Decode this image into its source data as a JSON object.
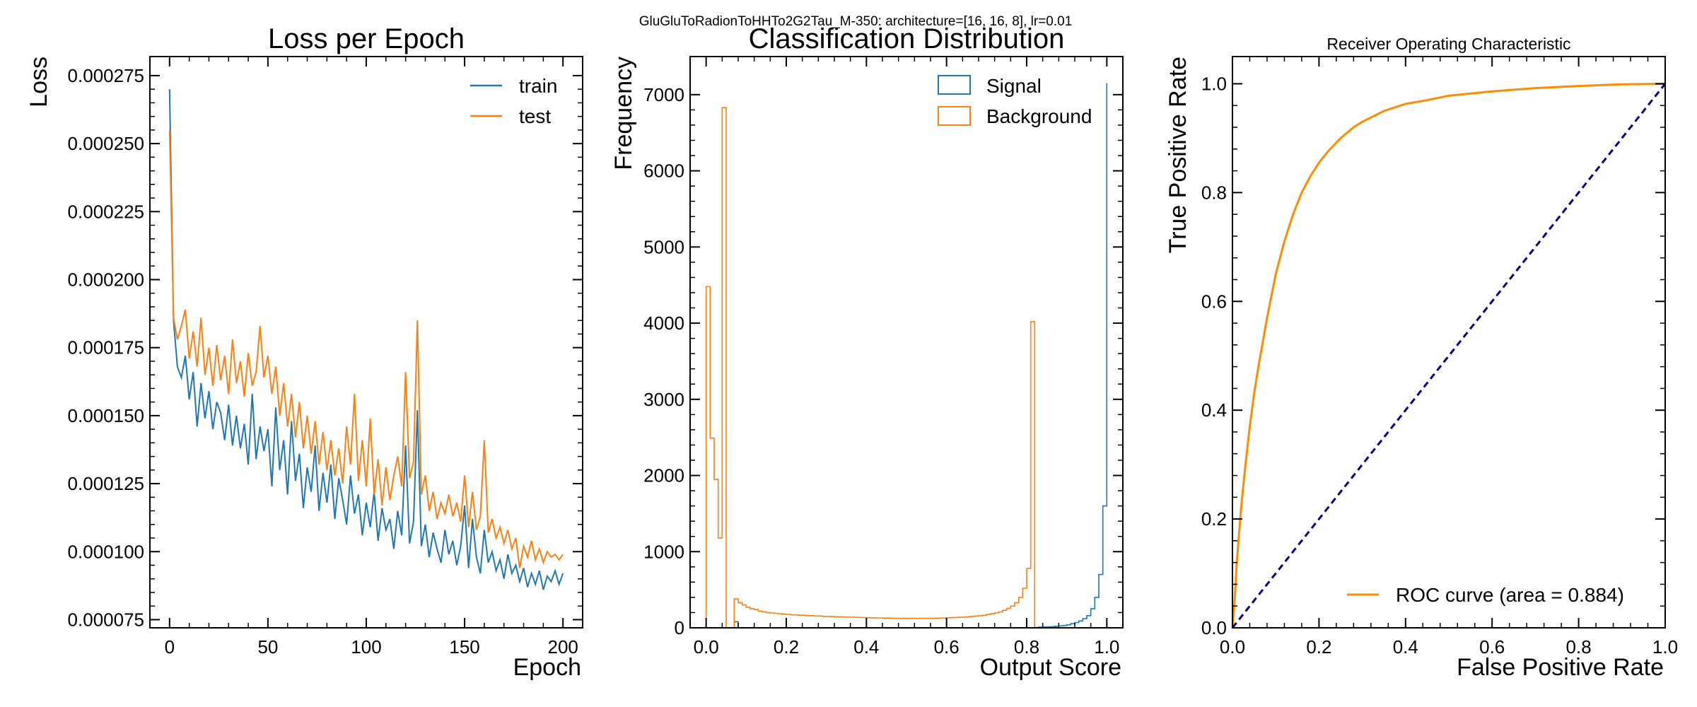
{
  "figure": {
    "suptitle": "GluGluToRadionToHHTo2G2Tau_M-350: architecture=[16, 16, 8], lr=0.01"
  },
  "colors": {
    "blue": "#1f77b4",
    "orange": "#ff7f0e",
    "roc_orange": "#ff8c00",
    "diag": "#000080"
  },
  "chart_data": [
    {
      "type": "line",
      "title": "Loss per Epoch",
      "xlabel": "Epoch",
      "ylabel": "Loss",
      "xlim": [
        -10,
        210
      ],
      "ylim": [
        7.2e-05,
        0.000282
      ],
      "xticks": [
        0,
        50,
        100,
        150,
        200
      ],
      "xtick_labels": [
        "0",
        "50",
        "100",
        "150",
        "200"
      ],
      "yticks": [
        7.5e-05,
        0.0001,
        0.000125,
        0.00015,
        0.000175,
        0.0002,
        0.000225,
        0.00025,
        0.000275
      ],
      "ytick_labels": [
        "0.000075",
        "0.000100",
        "0.000125",
        "0.000150",
        "0.000175",
        "0.000200",
        "0.000225",
        "0.000250",
        "0.000275"
      ],
      "legend": "top-right",
      "series": [
        {
          "name": "train",
          "color": "#1f77b4",
          "x": [
            0,
            2,
            4,
            6,
            8,
            10,
            12,
            14,
            16,
            18,
            20,
            22,
            24,
            26,
            28,
            30,
            32,
            34,
            36,
            38,
            40,
            42,
            44,
            46,
            48,
            50,
            52,
            54,
            56,
            58,
            60,
            62,
            64,
            66,
            68,
            70,
            72,
            74,
            76,
            78,
            80,
            82,
            84,
            86,
            88,
            90,
            92,
            94,
            96,
            98,
            100,
            102,
            104,
            106,
            108,
            110,
            112,
            114,
            116,
            118,
            120,
            122,
            124,
            126,
            128,
            130,
            132,
            134,
            136,
            138,
            140,
            142,
            144,
            146,
            148,
            150,
            152,
            154,
            156,
            158,
            160,
            162,
            164,
            166,
            168,
            170,
            172,
            174,
            176,
            178,
            180,
            182,
            184,
            186,
            188,
            190,
            192,
            194,
            196,
            198,
            200
          ],
          "y": [
            0.00027,
            0.000185,
            0.000168,
            0.000164,
            0.000172,
            0.000156,
            0.000166,
            0.000146,
            0.000162,
            0.000149,
            0.000159,
            0.000145,
            0.000155,
            0.000151,
            0.000141,
            0.000154,
            0.000139,
            0.00015,
            0.000138,
            0.000147,
            0.000132,
            0.000158,
            0.000134,
            0.000146,
            0.000137,
            0.000145,
            0.000124,
            0.000153,
            0.00013,
            0.000141,
            0.000121,
            0.000148,
            0.000126,
            0.000136,
            0.000116,
            0.000131,
            0.000122,
            0.000139,
            0.000115,
            0.000129,
            0.000118,
            0.000132,
            0.000112,
            0.000127,
            0.000119,
            0.00011,
            0.000128,
            0.000114,
            0.000121,
            0.000106,
            0.000118,
            0.000109,
            0.000122,
            0.000104,
            0.000116,
            0.000108,
            0.000112,
            0.000101,
            0.000115,
            0.000106,
            0.000139,
            0.000103,
            0.000111,
            0.000152,
            0.000102,
            0.00011,
            9.8e-05,
            0.000107,
            0.000101,
            9.6e-05,
            0.000108,
            9.9e-05,
            0.000104,
            9.5e-05,
            0.000102,
            0.000117,
            9.4e-05,
            0.000112,
            9.8e-05,
            9.2e-05,
            0.000108,
            9.6e-05,
            0.0001,
            9.3e-05,
            9.7e-05,
            9e-05,
            9.9e-05,
            9.2e-05,
            9.5e-05,
            8.9e-05,
            9.4e-05,
            8.7e-05,
            9.2e-05,
            8.8e-05,
            9.3e-05,
            8.6e-05,
            9.1e-05,
            8.9e-05,
            9.3e-05,
            8.8e-05,
            9.2e-05
          ]
        },
        {
          "name": "test",
          "color": "#ff7f0e",
          "x": [
            0,
            2,
            4,
            6,
            8,
            10,
            12,
            14,
            16,
            18,
            20,
            22,
            24,
            26,
            28,
            30,
            32,
            34,
            36,
            38,
            40,
            42,
            44,
            46,
            48,
            50,
            52,
            54,
            56,
            58,
            60,
            62,
            64,
            66,
            68,
            70,
            72,
            74,
            76,
            78,
            80,
            82,
            84,
            86,
            88,
            90,
            92,
            94,
            96,
            98,
            100,
            102,
            104,
            106,
            108,
            110,
            112,
            114,
            116,
            118,
            120,
            122,
            124,
            126,
            128,
            130,
            132,
            134,
            136,
            138,
            140,
            142,
            144,
            146,
            148,
            150,
            152,
            154,
            156,
            158,
            160,
            162,
            164,
            166,
            168,
            170,
            172,
            174,
            176,
            178,
            180,
            182,
            184,
            186,
            188,
            190,
            192,
            194,
            196,
            198,
            200
          ],
          "y": [
            0.000255,
            0.000186,
            0.000178,
            0.000183,
            0.000189,
            0.000171,
            0.000181,
            0.000168,
            0.000186,
            0.000165,
            0.000175,
            0.000161,
            0.000176,
            0.000163,
            0.000172,
            0.000158,
            0.000178,
            0.000162,
            0.00017,
            0.000157,
            0.000173,
            0.000161,
            0.000166,
            0.000183,
            0.000164,
            0.000172,
            0.000158,
            0.000168,
            0.00015,
            0.000162,
            0.000146,
            0.000158,
            0.000142,
            0.000155,
            0.000138,
            0.00015,
            0.000136,
            0.000148,
            0.000132,
            0.000144,
            0.00013,
            0.000141,
            0.000128,
            0.000138,
            0.000125,
            0.000146,
            0.000132,
            0.000158,
            0.000126,
            0.000141,
            0.000124,
            0.000149,
            0.000121,
            0.000134,
            0.000117,
            0.000131,
            0.000119,
            0.000128,
            0.000135,
            0.000124,
            0.000166,
            0.000127,
            0.000133,
            0.000185,
            0.000121,
            0.000128,
            0.000115,
            0.000122,
            0.000112,
            0.000118,
            0.000114,
            0.000121,
            0.000113,
            0.000118,
            0.000111,
            0.000128,
            0.000109,
            0.000122,
            0.000108,
            0.000113,
            0.000141,
            0.000107,
            0.000112,
            0.000105,
            0.000109,
            0.000103,
            0.000108,
            0.000101,
            0.000105,
            9.4e-05,
            0.000102,
            9.8e-05,
            0.000104,
            9.7e-05,
            0.000101,
            9.6e-05,
            0.0001,
            9.8e-05,
            9.9e-05,
            9.7e-05,
            9.9e-05
          ]
        }
      ]
    },
    {
      "type": "bar",
      "title": "Classification Distribution",
      "xlabel": "Output Score",
      "ylabel": "Frequency",
      "xlim": [
        -0.04,
        1.04
      ],
      "ylim": [
        0,
        7500
      ],
      "xticks": [
        0.0,
        0.2,
        0.4,
        0.6,
        0.8,
        1.0
      ],
      "xtick_labels": [
        "0.0",
        "0.2",
        "0.4",
        "0.6",
        "0.8",
        "1.0"
      ],
      "yticks": [
        0,
        1000,
        2000,
        3000,
        4000,
        5000,
        6000,
        7000
      ],
      "ytick_labels": [
        "0",
        "1000",
        "2000",
        "3000",
        "4000",
        "5000",
        "6000",
        "7000"
      ],
      "legend": "top-right",
      "bin_edges": [
        0.0,
        0.01,
        0.02,
        0.03,
        0.04,
        0.05,
        0.06,
        0.07,
        0.08,
        0.09,
        0.1,
        0.11,
        0.12,
        0.13,
        0.14,
        0.15,
        0.16,
        0.17,
        0.18,
        0.19,
        0.2,
        0.21,
        0.22,
        0.23,
        0.24,
        0.25,
        0.26,
        0.27,
        0.28,
        0.29,
        0.3,
        0.31,
        0.32,
        0.33,
        0.34,
        0.35,
        0.36,
        0.37,
        0.38,
        0.39,
        0.4,
        0.41,
        0.42,
        0.43,
        0.44,
        0.45,
        0.46,
        0.47,
        0.48,
        0.49,
        0.5,
        0.51,
        0.52,
        0.53,
        0.54,
        0.55,
        0.56,
        0.57,
        0.58,
        0.59,
        0.6,
        0.61,
        0.62,
        0.63,
        0.64,
        0.65,
        0.66,
        0.67,
        0.68,
        0.69,
        0.7,
        0.71,
        0.72,
        0.73,
        0.74,
        0.75,
        0.76,
        0.77,
        0.78,
        0.79,
        0.8,
        0.81,
        0.82,
        0.83,
        0.84,
        0.85,
        0.86,
        0.87,
        0.88,
        0.89,
        0.9,
        0.91,
        0.92,
        0.93,
        0.94,
        0.95,
        0.96,
        0.97,
        0.98,
        0.99,
        1.0
      ],
      "series": [
        {
          "name": "Signal",
          "color": "#1f77b4",
          "values": [
            0,
            0,
            0,
            0,
            0,
            0,
            0,
            80,
            0,
            0,
            0,
            0,
            0,
            0,
            0,
            0,
            0,
            0,
            0,
            0,
            0,
            0,
            0,
            0,
            0,
            0,
            0,
            0,
            0,
            0,
            0,
            0,
            0,
            0,
            0,
            0,
            0,
            0,
            0,
            0,
            0,
            0,
            0,
            0,
            0,
            0,
            0,
            0,
            0,
            0,
            0,
            0,
            0,
            0,
            0,
            0,
            0,
            0,
            0,
            0,
            0,
            0,
            0,
            0,
            0,
            0,
            0,
            0,
            0,
            0,
            0,
            0,
            0,
            0,
            0,
            0,
            0,
            0,
            0,
            0,
            0,
            0,
            5,
            8,
            10,
            12,
            15,
            20,
            25,
            30,
            40,
            55,
            70,
            90,
            120,
            160,
            250,
            400,
            700,
            1600,
            7150
          ]
        },
        {
          "name": "Background",
          "color": "#ff7f0e",
          "values": [
            4480,
            2490,
            1950,
            1180,
            6830,
            0,
            0,
            380,
            330,
            300,
            270,
            250,
            240,
            220,
            210,
            200,
            195,
            190,
            185,
            180,
            175,
            170,
            170,
            165,
            165,
            160,
            160,
            155,
            155,
            150,
            150,
            148,
            145,
            145,
            142,
            140,
            140,
            138,
            136,
            135,
            133,
            132,
            130,
            130,
            128,
            128,
            126,
            125,
            125,
            124,
            124,
            123,
            123,
            123,
            124,
            124,
            125,
            126,
            128,
            130,
            132,
            134,
            136,
            138,
            140,
            145,
            150,
            155,
            160,
            165,
            175,
            185,
            195,
            210,
            230,
            255,
            285,
            330,
            400,
            520,
            780,
            4020,
            0,
            0,
            0,
            0,
            0,
            0,
            0,
            0,
            0,
            0,
            0,
            0,
            0,
            0,
            0,
            0,
            0,
            0
          ]
        }
      ]
    },
    {
      "type": "line",
      "title": "Receiver Operating Characteristic",
      "xlabel": "False Positive Rate",
      "ylabel": "True Positive Rate",
      "xlim": [
        0.0,
        1.0
      ],
      "ylim": [
        0.0,
        1.05
      ],
      "xticks": [
        0.0,
        0.2,
        0.4,
        0.6,
        0.8,
        1.0
      ],
      "xtick_labels": [
        "0.0",
        "0.2",
        "0.4",
        "0.6",
        "0.8",
        "1.0"
      ],
      "yticks": [
        0.0,
        0.2,
        0.4,
        0.6,
        0.8,
        1.0
      ],
      "ytick_labels": [
        "0.0",
        "0.2",
        "0.4",
        "0.6",
        "0.8",
        "1.0"
      ],
      "legend": "lower-right",
      "series": [
        {
          "name": "ROC curve (area = 0.884)",
          "color": "#ff8c00",
          "x": [
            0.0,
            0.005,
            0.01,
            0.02,
            0.03,
            0.04,
            0.05,
            0.06,
            0.08,
            0.1,
            0.12,
            0.14,
            0.16,
            0.18,
            0.2,
            0.22,
            0.25,
            0.28,
            0.3,
            0.35,
            0.4,
            0.45,
            0.5,
            0.6,
            0.7,
            0.8,
            0.9,
            1.0
          ],
          "y": [
            0.0,
            0.05,
            0.12,
            0.22,
            0.3,
            0.37,
            0.43,
            0.48,
            0.57,
            0.65,
            0.71,
            0.76,
            0.8,
            0.83,
            0.855,
            0.875,
            0.9,
            0.92,
            0.93,
            0.95,
            0.963,
            0.97,
            0.978,
            0.986,
            0.992,
            0.996,
            0.999,
            1.0
          ]
        },
        {
          "name": "",
          "color": "#000080",
          "style": "dashed",
          "x": [
            0.0,
            1.0
          ],
          "y": [
            0.0,
            1.0
          ]
        }
      ]
    }
  ]
}
